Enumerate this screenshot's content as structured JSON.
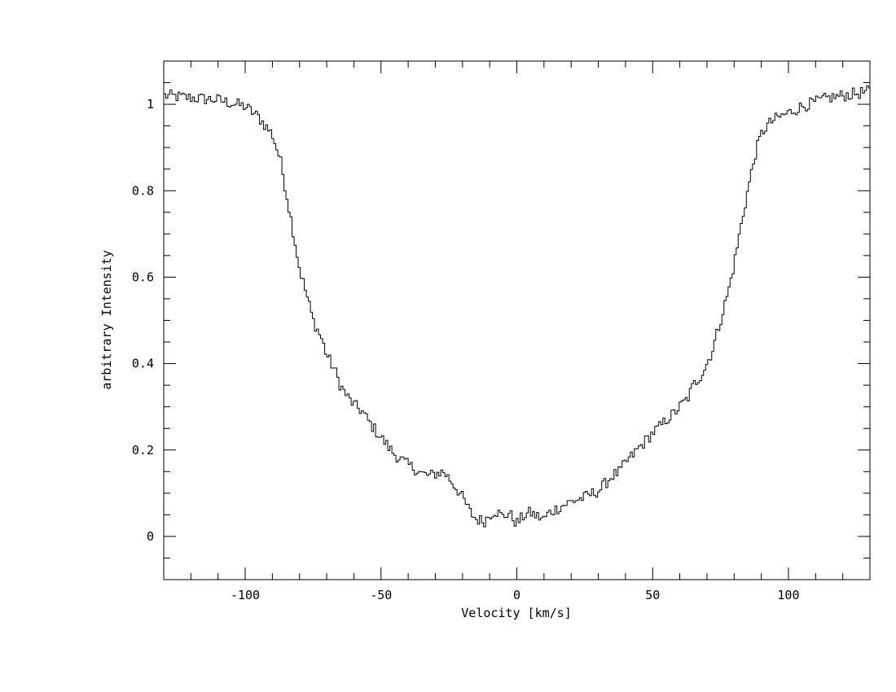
{
  "chart_data": {
    "type": "line",
    "style": "histogram-step",
    "xlabel": "Velocity [km/s]",
    "ylabel": "arbitrary Intensity",
    "xlim": [
      -130,
      130
    ],
    "ylim": [
      -0.1,
      1.1
    ],
    "x_ticks_major": [
      -100,
      -50,
      0,
      50,
      100
    ],
    "x_tick_labels": [
      "-100",
      "-50",
      "0",
      "50",
      "100"
    ],
    "x_tick_minor_step": 10,
    "y_ticks_major": [
      0,
      0.2,
      0.4,
      0.6,
      0.8,
      1
    ],
    "y_tick_labels": [
      "0",
      "0.2",
      "0.4",
      "0.6",
      "0.8",
      "1"
    ],
    "y_tick_minor_step": 0.05,
    "grid": false,
    "line_color": "#000000",
    "series": [
      {
        "x": [
          -130,
          -120,
          -110,
          -100,
          -95,
          -90,
          -87,
          -85,
          -83,
          -80,
          -77,
          -75,
          -72,
          -70,
          -67,
          -65,
          -62,
          -60,
          -57,
          -55,
          -52,
          -50,
          -47,
          -45,
          -42,
          -40,
          -37,
          -35,
          -32,
          -30,
          -27,
          -25,
          -22,
          -20,
          -17,
          -15,
          -12,
          -10,
          -8,
          -5,
          -3,
          0,
          3,
          5,
          8,
          10,
          12,
          15,
          18,
          20,
          22,
          25,
          28,
          30,
          33,
          35,
          38,
          40,
          43,
          45,
          48,
          50,
          53,
          55,
          58,
          60,
          63,
          65,
          68,
          70,
          72,
          75,
          78,
          80,
          82,
          85,
          87,
          88,
          90,
          92,
          95,
          100,
          105,
          110,
          115,
          120,
          125,
          130
        ],
        "y": [
          1.02,
          1.015,
          1.01,
          0.995,
          0.97,
          0.93,
          0.87,
          0.8,
          0.73,
          0.62,
          0.55,
          0.5,
          0.46,
          0.42,
          0.385,
          0.35,
          0.32,
          0.305,
          0.29,
          0.27,
          0.245,
          0.23,
          0.205,
          0.19,
          0.175,
          0.165,
          0.155,
          0.145,
          0.14,
          0.145,
          0.15,
          0.135,
          0.11,
          0.09,
          0.055,
          0.04,
          0.035,
          0.05,
          0.06,
          0.045,
          0.055,
          0.03,
          0.05,
          0.055,
          0.045,
          0.04,
          0.055,
          0.065,
          0.075,
          0.08,
          0.085,
          0.09,
          0.1,
          0.105,
          0.125,
          0.14,
          0.15,
          0.17,
          0.19,
          0.205,
          0.225,
          0.24,
          0.255,
          0.27,
          0.285,
          0.3,
          0.32,
          0.35,
          0.375,
          0.4,
          0.43,
          0.5,
          0.57,
          0.63,
          0.7,
          0.8,
          0.86,
          0.89,
          0.93,
          0.95,
          0.965,
          0.98,
          0.995,
          1.005,
          1.015,
          1.02,
          1.025,
          1.03
        ]
      }
    ]
  }
}
